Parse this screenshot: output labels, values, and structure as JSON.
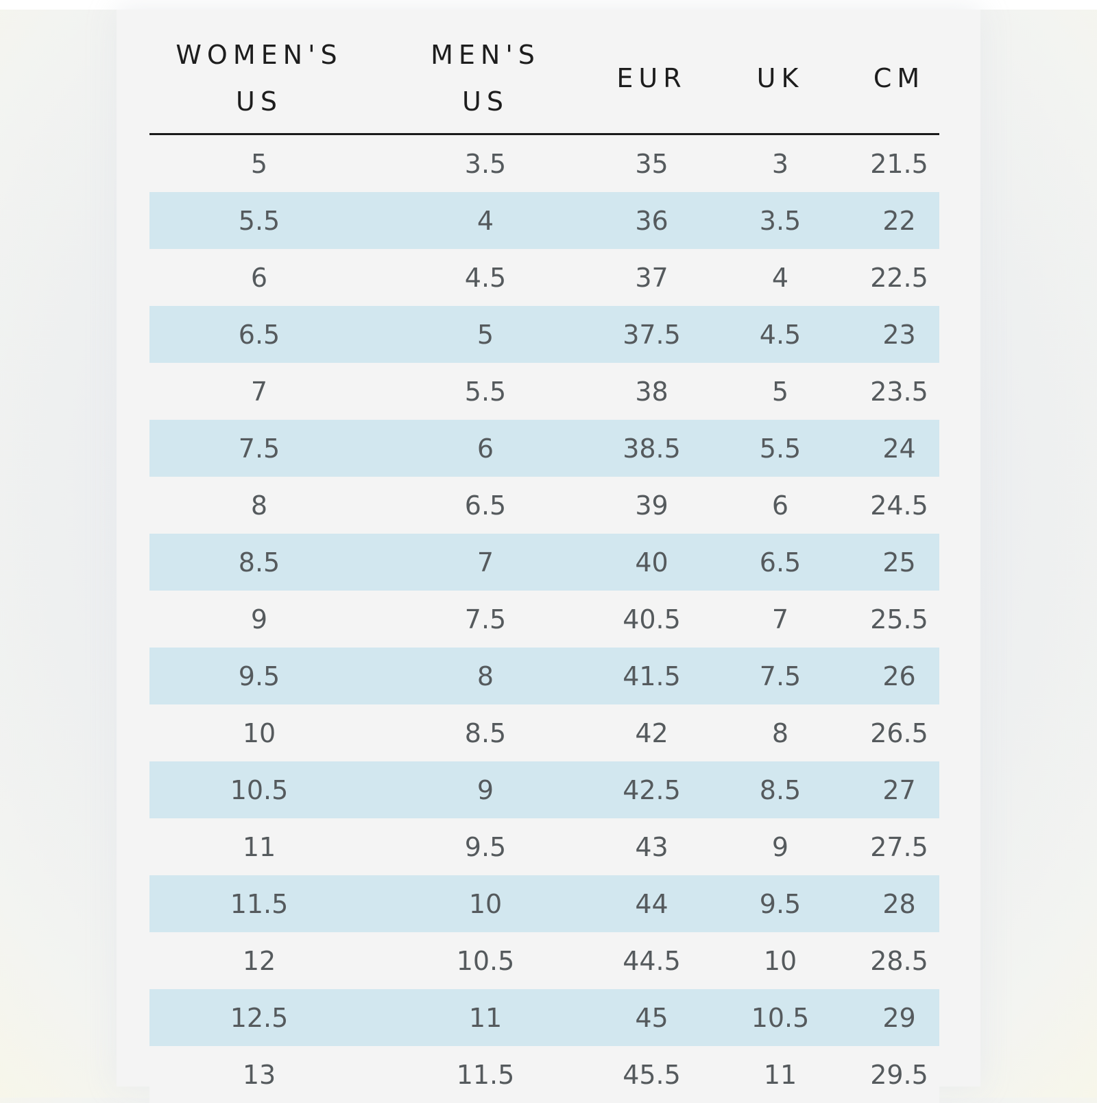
{
  "table": {
    "headers": [
      "WOMEN'S\nUS",
      "MEN'S\nUS",
      "EUR",
      "UK",
      "CM"
    ],
    "rows": [
      [
        "5",
        "3.5",
        "35",
        "3",
        "21.5"
      ],
      [
        "5.5",
        "4",
        "36",
        "3.5",
        "22"
      ],
      [
        "6",
        "4.5",
        "37",
        "4",
        "22.5"
      ],
      [
        "6.5",
        "5",
        "37.5",
        "4.5",
        "23"
      ],
      [
        "7",
        "5.5",
        "38",
        "5",
        "23.5"
      ],
      [
        "7.5",
        "6",
        "38.5",
        "5.5",
        "24"
      ],
      [
        "8",
        "6.5",
        "39",
        "6",
        "24.5"
      ],
      [
        "8.5",
        "7",
        "40",
        "6.5",
        "25"
      ],
      [
        "9",
        "7.5",
        "40.5",
        "7",
        "25.5"
      ],
      [
        "9.5",
        "8",
        "41.5",
        "7.5",
        "26"
      ],
      [
        "10",
        "8.5",
        "42",
        "8",
        "26.5"
      ],
      [
        "10.5",
        "9",
        "42.5",
        "8.5",
        "27"
      ],
      [
        "11",
        "9.5",
        "43",
        "9",
        "27.5"
      ],
      [
        "11.5",
        "10",
        "44",
        "9.5",
        "28"
      ],
      [
        "12",
        "10.5",
        "44.5",
        "10",
        "28.5"
      ],
      [
        "12.5",
        "11",
        "45",
        "10.5",
        "29"
      ],
      [
        "13",
        "11.5",
        "45.5",
        "11",
        "29.5"
      ]
    ],
    "stripe_color": "#d2e7ef",
    "text_color": "#555a5d",
    "header_color": "#1d1d1d"
  }
}
